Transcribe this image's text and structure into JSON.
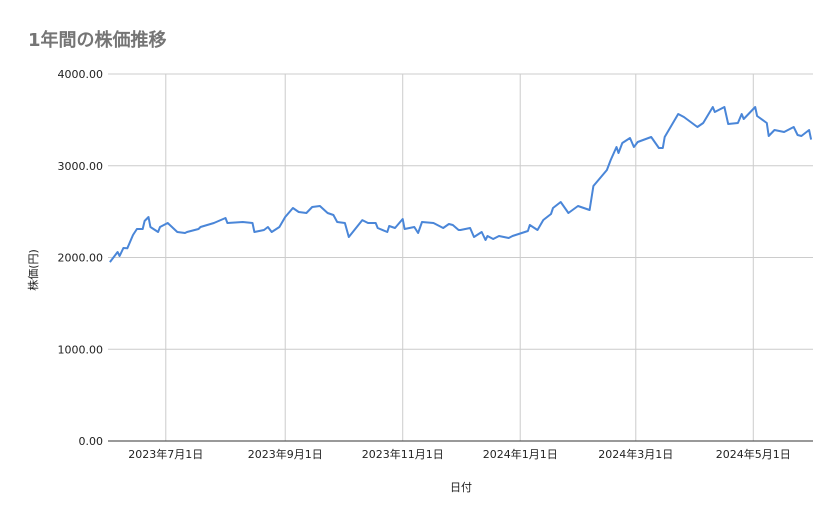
{
  "chart_data": {
    "type": "line",
    "title": "1年間の株価推移",
    "xlabel": "日付",
    "ylabel": "株価(円)",
    "xlim": [
      "2023-06-01",
      "2024-06-01"
    ],
    "ylim": [
      0,
      4000
    ],
    "grid": true,
    "legend": "none",
    "y_ticks": [
      0,
      1000,
      2000,
      3000,
      4000
    ],
    "y_tick_labels": [
      "0.00",
      "1000.00",
      "2000.00",
      "3000.00",
      "4000.00"
    ],
    "x_ticks": [
      "2023-07-01",
      "2023-09-01",
      "2023-11-01",
      "2024-01-01",
      "2024-03-01",
      "2024-05-01"
    ],
    "x_tick_labels": [
      "2023年7月1日",
      "2023年9月1日",
      "2023年11月1日",
      "2024年1月1日",
      "2024年3月1日",
      "2024年5月1日"
    ],
    "colors": {
      "line": "#4a86d8",
      "grid": "#cccccc",
      "axis": "#333333",
      "title": "#757575"
    },
    "series": [
      {
        "x": [
          "2023-06-02",
          "2023-06-06",
          "2023-06-07",
          "2023-06-09",
          "2023-06-11",
          "2023-06-14",
          "2023-06-16",
          "2023-06-19",
          "2023-06-20",
          "2023-06-22",
          "2023-06-23",
          "2023-06-27",
          "2023-06-28",
          "2023-07-02",
          "2023-07-07",
          "2023-07-11",
          "2023-07-12",
          "2023-07-18",
          "2023-07-19",
          "2023-07-26",
          "2023-08-01",
          "2023-08-02",
          "2023-08-10",
          "2023-08-15",
          "2023-08-16",
          "2023-08-21",
          "2023-08-23",
          "2023-08-25",
          "2023-08-29",
          "2023-09-01",
          "2023-09-05",
          "2023-09-08",
          "2023-09-12",
          "2023-09-15",
          "2023-09-19",
          "2023-09-23",
          "2023-09-26",
          "2023-09-28",
          "2023-10-02",
          "2023-10-04",
          "2023-10-11",
          "2023-10-14",
          "2023-10-18",
          "2023-10-19",
          "2023-10-24",
          "2023-10-25",
          "2023-10-28",
          "2023-11-01",
          "2023-11-02",
          "2023-11-07",
          "2023-11-09",
          "2023-11-11",
          "2023-11-17",
          "2023-11-22",
          "2023-11-25",
          "2023-11-27",
          "2023-11-30",
          "2023-12-01",
          "2023-12-06",
          "2023-12-08",
          "2023-12-12",
          "2023-12-14",
          "2023-12-15",
          "2023-12-18",
          "2023-12-21",
          "2023-12-26",
          "2023-12-28",
          "2024-01-05",
          "2024-01-06",
          "2024-01-10",
          "2024-01-13",
          "2024-01-17",
          "2024-01-18",
          "2024-01-22",
          "2024-01-26",
          "2024-01-31",
          "2024-02-06",
          "2024-02-08",
          "2024-02-15",
          "2024-02-17",
          "2024-02-20",
          "2024-02-21",
          "2024-02-23",
          "2024-02-27",
          "2024-02-29",
          "2024-03-02",
          "2024-03-09",
          "2024-03-13",
          "2024-03-15",
          "2024-03-16",
          "2024-03-23",
          "2024-03-26",
          "2024-04-02",
          "2024-04-05",
          "2024-04-10",
          "2024-04-11",
          "2024-04-16",
          "2024-04-18",
          "2024-04-23",
          "2024-04-25",
          "2024-04-26",
          "2024-05-02",
          "2024-05-03",
          "2024-05-08",
          "2024-05-09",
          "2024-05-12",
          "2024-05-17",
          "2024-05-22",
          "2024-05-24",
          "2024-05-26",
          "2024-05-30",
          "2024-05-31"
        ],
        "y": [
          1950,
          2060,
          2016,
          2104,
          2100,
          2245,
          2311,
          2311,
          2398,
          2441,
          2332,
          2278,
          2332,
          2376,
          2278,
          2267,
          2278,
          2311,
          2332,
          2376,
          2430,
          2376,
          2387,
          2376,
          2278,
          2300,
          2332,
          2278,
          2332,
          2441,
          2540,
          2496,
          2485,
          2550,
          2561,
          2485,
          2463,
          2387,
          2376,
          2223,
          2408,
          2376,
          2376,
          2322,
          2278,
          2343,
          2322,
          2420,
          2311,
          2332,
          2267,
          2387,
          2376,
          2322,
          2365,
          2354,
          2300,
          2300,
          2322,
          2223,
          2278,
          2191,
          2234,
          2202,
          2234,
          2212,
          2234,
          2289,
          2354,
          2300,
          2409,
          2474,
          2540,
          2605,
          2485,
          2561,
          2518,
          2779,
          2954,
          3063,
          3204,
          3139,
          3248,
          3302,
          3204,
          3259,
          3313,
          3193,
          3193,
          3313,
          3564,
          3531,
          3422,
          3466,
          3640,
          3586,
          3640,
          3455,
          3466,
          3564,
          3510,
          3640,
          3542,
          3466,
          3324,
          3390,
          3368,
          3422,
          3335,
          3324,
          3390,
          3285
        ]
      }
    ]
  }
}
